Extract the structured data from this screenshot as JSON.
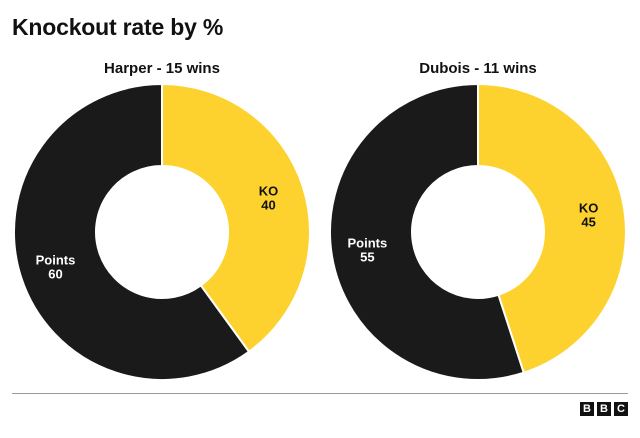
{
  "chart_data": [
    {
      "type": "pie",
      "title": "Harper - 15 wins",
      "slices": [
        {
          "name": "KO",
          "value": 40,
          "color": "#fdd22f"
        },
        {
          "name": "Points",
          "value": 60,
          "color": "#1a1a1a"
        }
      ]
    },
    {
      "type": "pie",
      "title": "Dubois - 11 wins",
      "slices": [
        {
          "name": "KO",
          "value": 45,
          "color": "#fdd22f"
        },
        {
          "name": "Points",
          "value": 55,
          "color": "#1a1a1a"
        }
      ]
    }
  ],
  "header": {
    "title": "Knockout rate by %"
  },
  "footer": {
    "logo_letters": [
      "B",
      "B",
      "C"
    ]
  }
}
